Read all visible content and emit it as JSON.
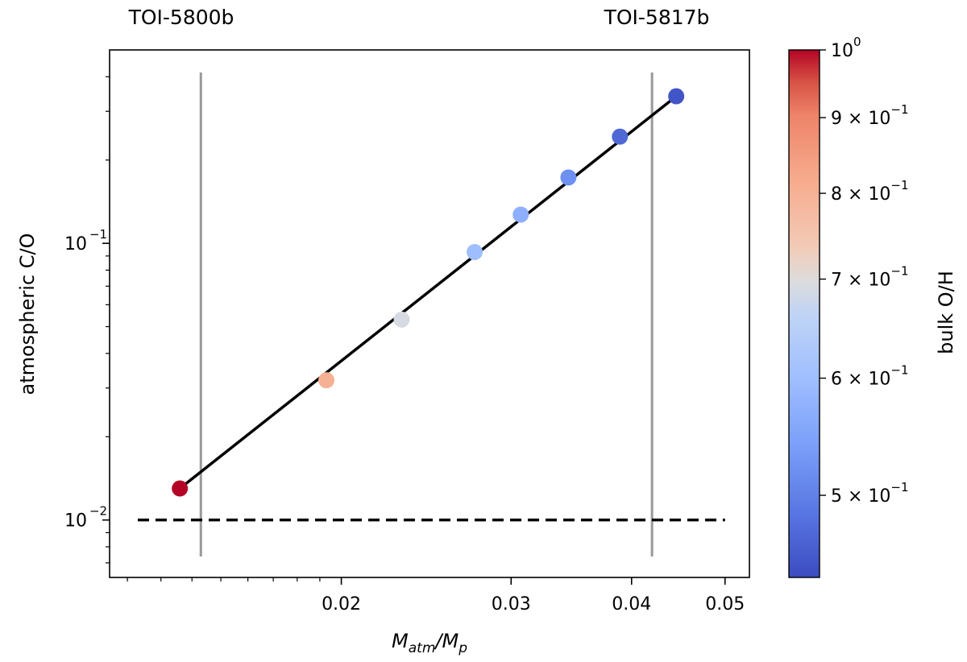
{
  "chart_data": {
    "type": "scatter",
    "title": "",
    "xlabel": "M_atm/M_p",
    "ylabel": "atmospheric C/O",
    "x_scale": "log",
    "y_scale": "log",
    "xlim": [
      0.0115,
      0.053
    ],
    "ylim": [
      0.0062,
      0.5
    ],
    "x_ticks": [
      {
        "value": 0.02,
        "label": "0.02"
      },
      {
        "value": 0.03,
        "label": "0.03"
      },
      {
        "value": 0.04,
        "label": "0.04"
      },
      {
        "value": 0.05,
        "label": "0.05"
      }
    ],
    "y_ticks": [
      {
        "value": 0.01,
        "mantissa": "10",
        "exponent": "−2"
      },
      {
        "value": 0.1,
        "mantissa": "10",
        "exponent": "−1"
      }
    ],
    "fit_line": {
      "x": [
        0.0136,
        0.0445
      ],
      "y": [
        0.013,
        0.34
      ],
      "color": "#000000",
      "style": "solid"
    },
    "reference_line": {
      "y": 0.01,
      "x_range": [
        0.0123,
        0.05
      ],
      "color": "#000000",
      "style": "dashed"
    },
    "vertical_markers": [
      {
        "x": 0.0143,
        "label": "TOI-5800b",
        "color": "#999999"
      },
      {
        "x": 0.042,
        "label": "TOI-5817b",
        "color": "#999999"
      }
    ],
    "points": [
      {
        "x": 0.0136,
        "y": 0.013,
        "bulk_OH": 1.0
      },
      {
        "x": 0.0193,
        "y": 0.032,
        "bulk_OH": 0.8
      },
      {
        "x": 0.0231,
        "y": 0.053,
        "bulk_OH": 0.69
      },
      {
        "x": 0.0275,
        "y": 0.093,
        "bulk_OH": 0.6
      },
      {
        "x": 0.0307,
        "y": 0.127,
        "bulk_OH": 0.57
      },
      {
        "x": 0.0344,
        "y": 0.173,
        "bulk_OH": 0.52
      },
      {
        "x": 0.0389,
        "y": 0.243,
        "bulk_OH": 0.47
      },
      {
        "x": 0.0445,
        "y": 0.34,
        "bulk_OH": 0.45
      }
    ],
    "colorbar": {
      "label": "bulk O/H",
      "colormap": "coolwarm",
      "range": [
        0.44,
        1.0
      ],
      "scale": "log",
      "ticks": [
        {
          "value": 1.0,
          "mantissa": "10",
          "exponent": "0",
          "coeff": ""
        },
        {
          "value": 0.9,
          "mantissa": "10",
          "exponent": "−1",
          "coeff": "9 × "
        },
        {
          "value": 0.8,
          "mantissa": "10",
          "exponent": "−1",
          "coeff": "8 × "
        },
        {
          "value": 0.7,
          "mantissa": "10",
          "exponent": "−1",
          "coeff": "7 × "
        },
        {
          "value": 0.6,
          "mantissa": "10",
          "exponent": "−1",
          "coeff": "6 × "
        },
        {
          "value": 0.5,
          "mantissa": "10",
          "exponent": "−1",
          "coeff": "5 × "
        }
      ]
    }
  }
}
